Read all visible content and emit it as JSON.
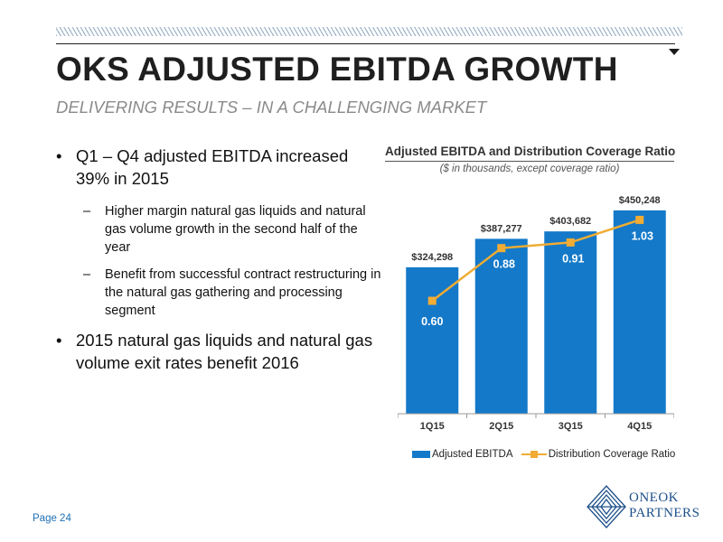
{
  "header": {
    "title": "OKS ADJUSTED EBITDA GROWTH",
    "subtitle": "DELIVERING RESULTS – IN A CHALLENGING MARKET"
  },
  "bullets": {
    "b1": "Q1 – Q4 adjusted EBITDA increased 39% in 2015",
    "sub1": "Higher margin natural gas liquids and natural gas volume growth in the second half of the year",
    "sub2": "Benefit from successful contract restructuring in the natural gas gathering and processing segment",
    "b2": "2015 natural gas liquids and natural gas volume exit rates benefit 2016",
    "dot": "•",
    "dash": "–"
  },
  "chart_data": {
    "type": "bar",
    "title": "Adjusted EBITDA and Distribution Coverage Ratio",
    "subtitle": "($ in thousands, except coverage ratio)",
    "categories": [
      "1Q15",
      "2Q15",
      "3Q15",
      "4Q15"
    ],
    "series": [
      {
        "name": "Adjusted EBITDA",
        "type": "bar",
        "values": [
          324298,
          387277,
          403682,
          450248
        ],
        "labels": [
          "$324,298",
          "$387,277",
          "$403,682",
          "$450,248"
        ],
        "color": "#1479c9"
      },
      {
        "name": "Distribution Coverage Ratio",
        "type": "line",
        "values": [
          0.6,
          0.88,
          0.91,
          1.03
        ],
        "labels": [
          "0.60",
          "0.88",
          "0.91",
          "1.03"
        ],
        "color": "#f0ac34"
      }
    ],
    "ylim": [
      0,
      500000
    ],
    "y2lim": [
      0,
      1.2
    ],
    "legend": "bottom"
  },
  "footer": {
    "page": "Page 24",
    "logo_line1": "ONEOK",
    "logo_line2": "PARTNERS"
  }
}
